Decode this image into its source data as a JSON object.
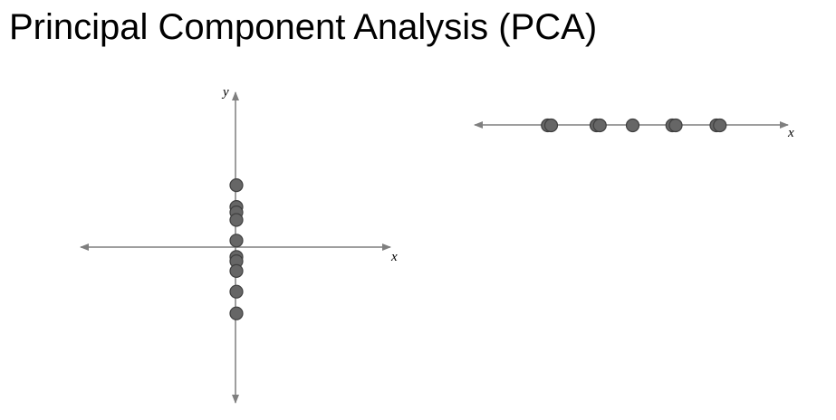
{
  "title": "Principal Component Analysis (PCA)",
  "colors": {
    "axis": "#7f7f7f",
    "point_fill": "#666666",
    "point_stroke": "#3f3f3f"
  },
  "left_plot": {
    "x_axis_label": "x",
    "y_axis_label": "y",
    "points_y": [
      2.85,
      1.85,
      1.6,
      1.25,
      0.3,
      -0.45,
      -0.65,
      -1.1,
      -2.05,
      -3.05
    ]
  },
  "right_plot": {
    "x_axis_label": "x",
    "points_x": [
      -3.85,
      -3.7,
      -1.7,
      -1.55,
      -0.1,
      1.65,
      1.8,
      3.6,
      3.75
    ]
  }
}
